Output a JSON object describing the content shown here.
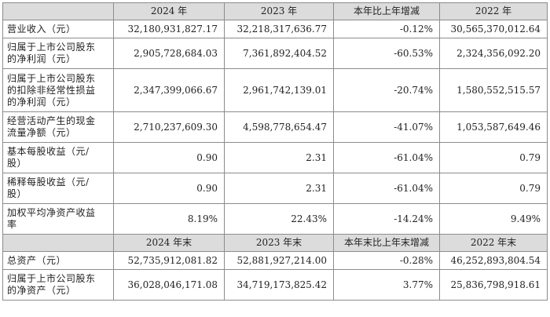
{
  "header1": [
    "",
    "2024 年",
    "2023 年",
    "本年比上年增减",
    "2022 年"
  ],
  "rows1": [
    {
      "label": [
        "营业收入（元）"
      ],
      "values": [
        "32,180,931,827.17",
        "32,218,317,636.77",
        "-0.12%",
        "30,565,370,012.64"
      ]
    },
    {
      "label": [
        "归属于上市公司股东",
        "的净利润（元）"
      ],
      "values": [
        "2,905,728,684.03",
        "7,361,892,404.52",
        "-60.53%",
        "2,324,356,092.20"
      ]
    },
    {
      "label": [
        "归属于上市公司股东",
        "的扣除非经常性损益",
        "的净利润（元）"
      ],
      "values": [
        "2,347,399,066.67",
        "2,961,742,139.01",
        "-20.74%",
        "1,580,552,515.57"
      ]
    },
    {
      "label": [
        "经营活动产生的现金",
        "流量净额（元）"
      ],
      "values": [
        "2,710,237,609.30",
        "4,598,778,654.47",
        "-41.07%",
        "1,053,587,649.46"
      ]
    },
    {
      "label": [
        "基本每股收益（元/",
        "股）"
      ],
      "values": [
        "0.90",
        "2.31",
        "-61.04%",
        "0.79"
      ]
    },
    {
      "label": [
        "稀释每股收益（元/",
        "股）"
      ],
      "values": [
        "0.90",
        "2.31",
        "-61.04%",
        "0.79"
      ]
    },
    {
      "label": [
        "加权平均净资产收益",
        "率"
      ],
      "values": [
        "8.19%",
        "22.43%",
        "-14.24%",
        "9.49%"
      ]
    }
  ],
  "header2": [
    "",
    "2024 年末",
    "2023 年末",
    "本年末比上年末增减",
    "2022 年末"
  ],
  "rows2": [
    {
      "label": [
        "总资产（元）"
      ],
      "values": [
        "52,735,912,081.82",
        "52,881,927,214.00",
        "-0.28%",
        "46,252,893,804.54"
      ]
    },
    {
      "label": [
        "归属于上市公司股东",
        "的净资产（元）"
      ],
      "values": [
        "36,028,046,171.08",
        "34,719,173,825.42",
        "3.77%",
        "25,836,798,918.61"
      ]
    }
  ]
}
